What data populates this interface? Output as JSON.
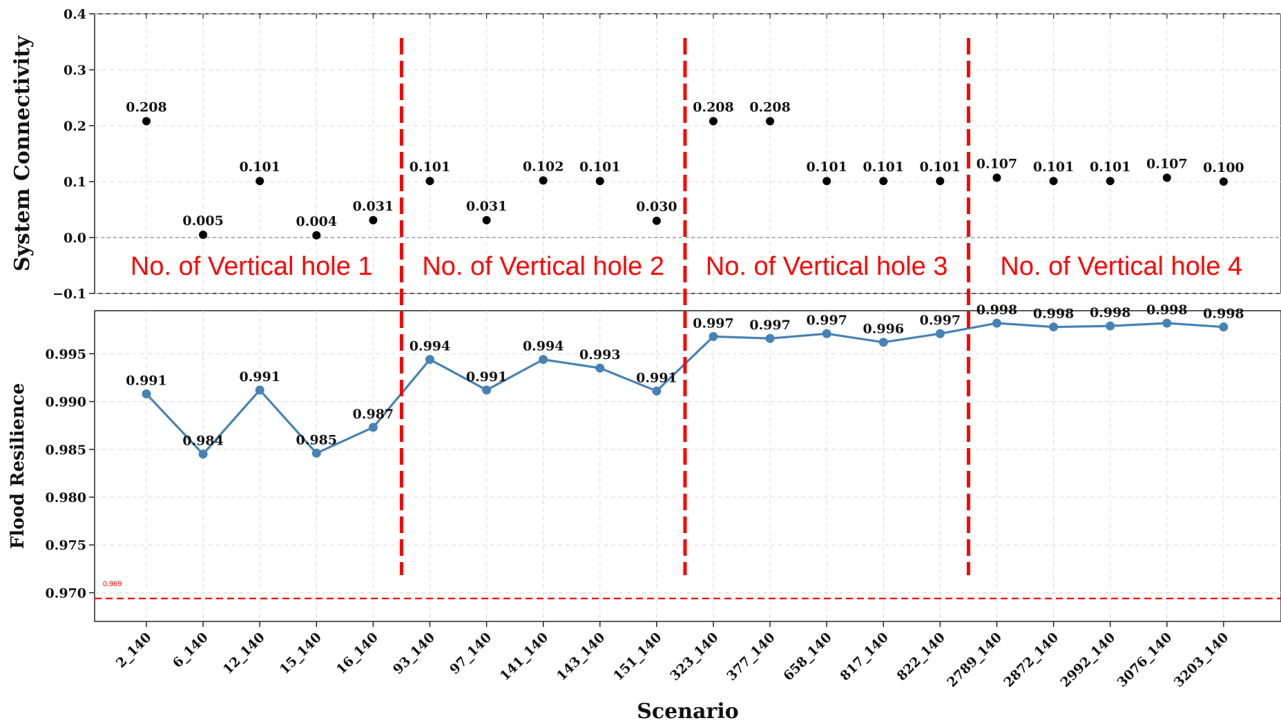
{
  "chart_data": [
    {
      "type": "scatter",
      "ylabel": "System Connectivity",
      "ylim": [
        -0.1,
        0.4
      ],
      "yticks": [
        "−0.1",
        "0.0",
        "0.1",
        "0.2",
        "0.3",
        "0.4"
      ],
      "ytick_values": [
        -0.1,
        0.0,
        0.1,
        0.2,
        0.3,
        0.4
      ],
      "grid": true,
      "reference_line": 0.0,
      "values": [
        0.208,
        0.005,
        0.101,
        0.004,
        0.031,
        0.101,
        0.031,
        0.102,
        0.101,
        0.03,
        0.208,
        0.208,
        0.101,
        0.101,
        0.101,
        0.107,
        0.101,
        0.101,
        0.107,
        0.1
      ],
      "labels": [
        "0.208",
        "0.005",
        "0.101",
        "0.004",
        "0.031",
        "0.101",
        "0.031",
        "0.102",
        "0.101",
        "0.030",
        "0.208",
        "0.208",
        "0.101",
        "0.101",
        "0.101",
        "0.107",
        "0.101",
        "0.101",
        "0.107",
        "0.100"
      ],
      "group_labels": [
        "No. of Vertical hole 1",
        "No. of Vertical hole 2",
        "No. of Vertical hole 3",
        "No. of Vertical hole 4"
      ]
    },
    {
      "type": "line",
      "xlabel": "Scenario",
      "ylabel": "Flood Resilience",
      "ylim": [
        0.967,
        0.9995
      ],
      "yticks": [
        "0.970",
        "0.975",
        "0.980",
        "0.985",
        "0.990",
        "0.995"
      ],
      "ytick_values": [
        0.97,
        0.975,
        0.98,
        0.985,
        0.99,
        0.995
      ],
      "grid": true,
      "values": [
        0.9908,
        0.9845,
        0.9912,
        0.9846,
        0.9873,
        0.9944,
        0.9912,
        0.9944,
        0.9935,
        0.9911,
        0.9968,
        0.9966,
        0.9971,
        0.9962,
        0.9971,
        0.9982,
        0.9978,
        0.9979,
        0.9982,
        0.9978
      ],
      "labels": [
        "0.991",
        "0.984",
        "0.991",
        "0.985",
        "0.987",
        "0.994",
        "0.991",
        "0.994",
        "0.993",
        "0.991",
        "0.997",
        "0.997",
        "0.997",
        "0.996",
        "0.997",
        "0.998",
        "0.998",
        "0.998",
        "0.998",
        "0.998"
      ],
      "threshold": 0.9694,
      "threshold_label": "0.969",
      "line_color": "#4682b4",
      "threshold_color": "#ff0000"
    }
  ],
  "categories": [
    "2_140",
    "6_140",
    "12_140",
    "15_140",
    "16_140",
    "93_140",
    "97_140",
    "141_140",
    "143_140",
    "151_140",
    "323_140",
    "377_140",
    "658_140",
    "817_140",
    "822_140",
    "2789_140",
    "2872_140",
    "2992_140",
    "3076_140",
    "3203_140"
  ],
  "separator_after_index": [
    4,
    9,
    14
  ],
  "separator_color": "#ff0000"
}
